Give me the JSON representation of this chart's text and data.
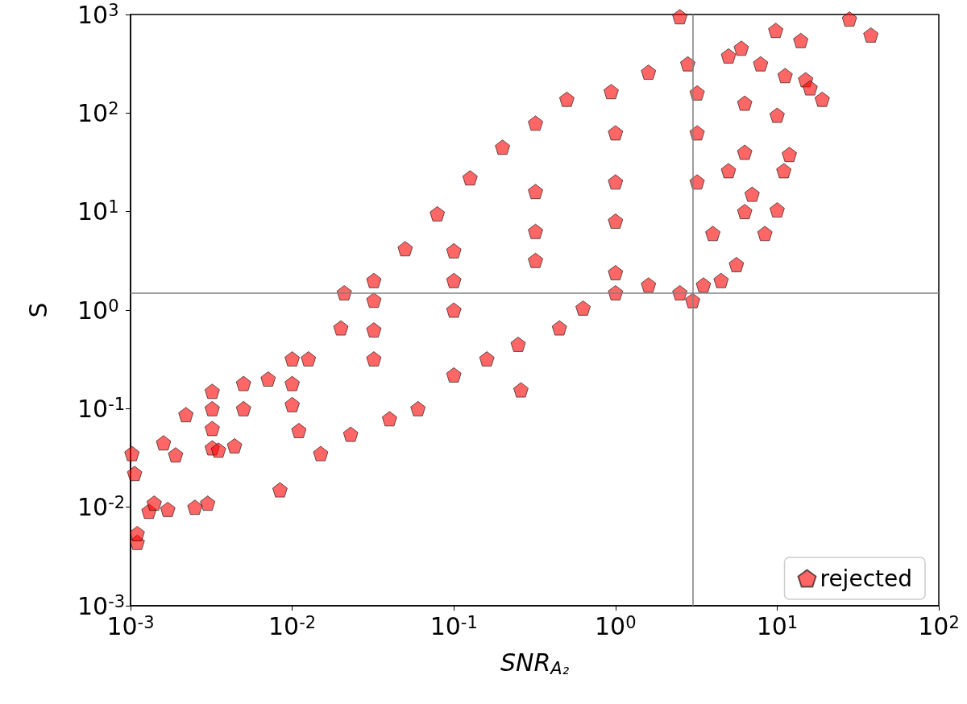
{
  "chart_data": {
    "type": "scatter",
    "xlabel": "SNR$_{A₂}$",
    "ylabel": "S",
    "log": "xy",
    "grid": false,
    "legend": "bottom right",
    "xlim": [
      0.001,
      100
    ],
    "ylim": [
      0.001,
      1000
    ],
    "xticks": [
      {
        "value": 0.001,
        "label": "10$^{-3}$"
      },
      {
        "value": 0.01,
        "label": "10$^{-2}$"
      },
      {
        "value": 0.1,
        "label": "10$^{-1}$"
      },
      {
        "value": 1,
        "label": "10$^{0}$"
      },
      {
        "value": 10,
        "label": "10$^{1}$"
      },
      {
        "value": 100,
        "label": "10$^{2}$"
      }
    ],
    "yticks": [
      {
        "value": 0.001,
        "label": "10$^{-3}$"
      },
      {
        "value": 0.01,
        "label": "10$^{-2}$"
      },
      {
        "value": 0.1,
        "label": "10$^{-1}$"
      },
      {
        "value": 1,
        "label": "10$^{0}$"
      },
      {
        "value": 10,
        "label": "10$^{1}$"
      },
      {
        "value": 100,
        "label": "10$^{2}$"
      },
      {
        "value": 1000,
        "label": "10$^{3}$"
      }
    ],
    "ref_lines": [
      {
        "axis": "x",
        "value": 3,
        "color": "#808080"
      },
      {
        "axis": "y",
        "value": 1.5,
        "color": "#808080"
      }
    ],
    "series": [
      {
        "name": "rejected",
        "color": "#ff0000",
        "x": [
          0.00106,
          0.0011,
          0.0011,
          0.0013,
          0.0014,
          0.0017,
          0.0025,
          0.003,
          0.0084,
          0.0016,
          0.0022,
          0.0032,
          0.005,
          0.0071,
          0.0126,
          0.02,
          0.021,
          0.032,
          0.05,
          0.079,
          0.126,
          0.2,
          0.32,
          0.5,
          0.94,
          1.6,
          2.8,
          5.0,
          6.0,
          7.9,
          11.2,
          10,
          11.9,
          11,
          10,
          8.4,
          5.6,
          4.5,
          3.0,
          2.5,
          1.6,
          1.0,
          0.63,
          0.45,
          0.25,
          0.16,
          0.1,
          0.06,
          0.04,
          0.023,
          0.015,
          0.26,
          9.8,
          14,
          15,
          16,
          19,
          28,
          38,
          2.5,
          5,
          7,
          4,
          3.5,
          1,
          0.0032,
          0.0032,
          0.0032,
          0.01,
          0.01,
          0.01,
          0.032,
          0.032,
          0.032,
          0.1,
          0.1,
          0.1,
          0.32,
          0.32,
          0.32,
          1.0,
          1.0,
          1.0,
          3.2,
          3.2,
          3.2,
          6.3,
          6.3,
          6.3,
          0.005,
          0.0044,
          0.0019,
          0.0035,
          0.011,
          0.00102
        ],
        "values": [
          0.022,
          0.0044,
          0.0054,
          0.0091,
          0.011,
          0.0095,
          0.01,
          0.011,
          0.015,
          0.045,
          0.087,
          0.15,
          0.18,
          0.2,
          0.32,
          0.66,
          1.5,
          2.0,
          4.2,
          9.5,
          22,
          45,
          79,
          138,
          165,
          260,
          316,
          380,
          455,
          316,
          240,
          95,
          38,
          26,
          10.4,
          6,
          2.9,
          2.0,
          1.25,
          1.5,
          1.8,
          1.5,
          1.05,
          0.66,
          0.45,
          0.32,
          0.22,
          0.1,
          0.079,
          0.055,
          0.035,
          0.155,
          690,
          545,
          218,
          180,
          138,
          900,
          620,
          950,
          26,
          15,
          6,
          1.8,
          2.4,
          0.063,
          0.04,
          0.1,
          0.18,
          0.11,
          0.32,
          0.63,
          0.32,
          1.26,
          2.0,
          1.0,
          4.0,
          6.3,
          3.2,
          16,
          20,
          8,
          63,
          63,
          20,
          160,
          126,
          40,
          10,
          0.1,
          0.042,
          0.034,
          0.038,
          0.06,
          0.035
        ]
      }
    ]
  }
}
